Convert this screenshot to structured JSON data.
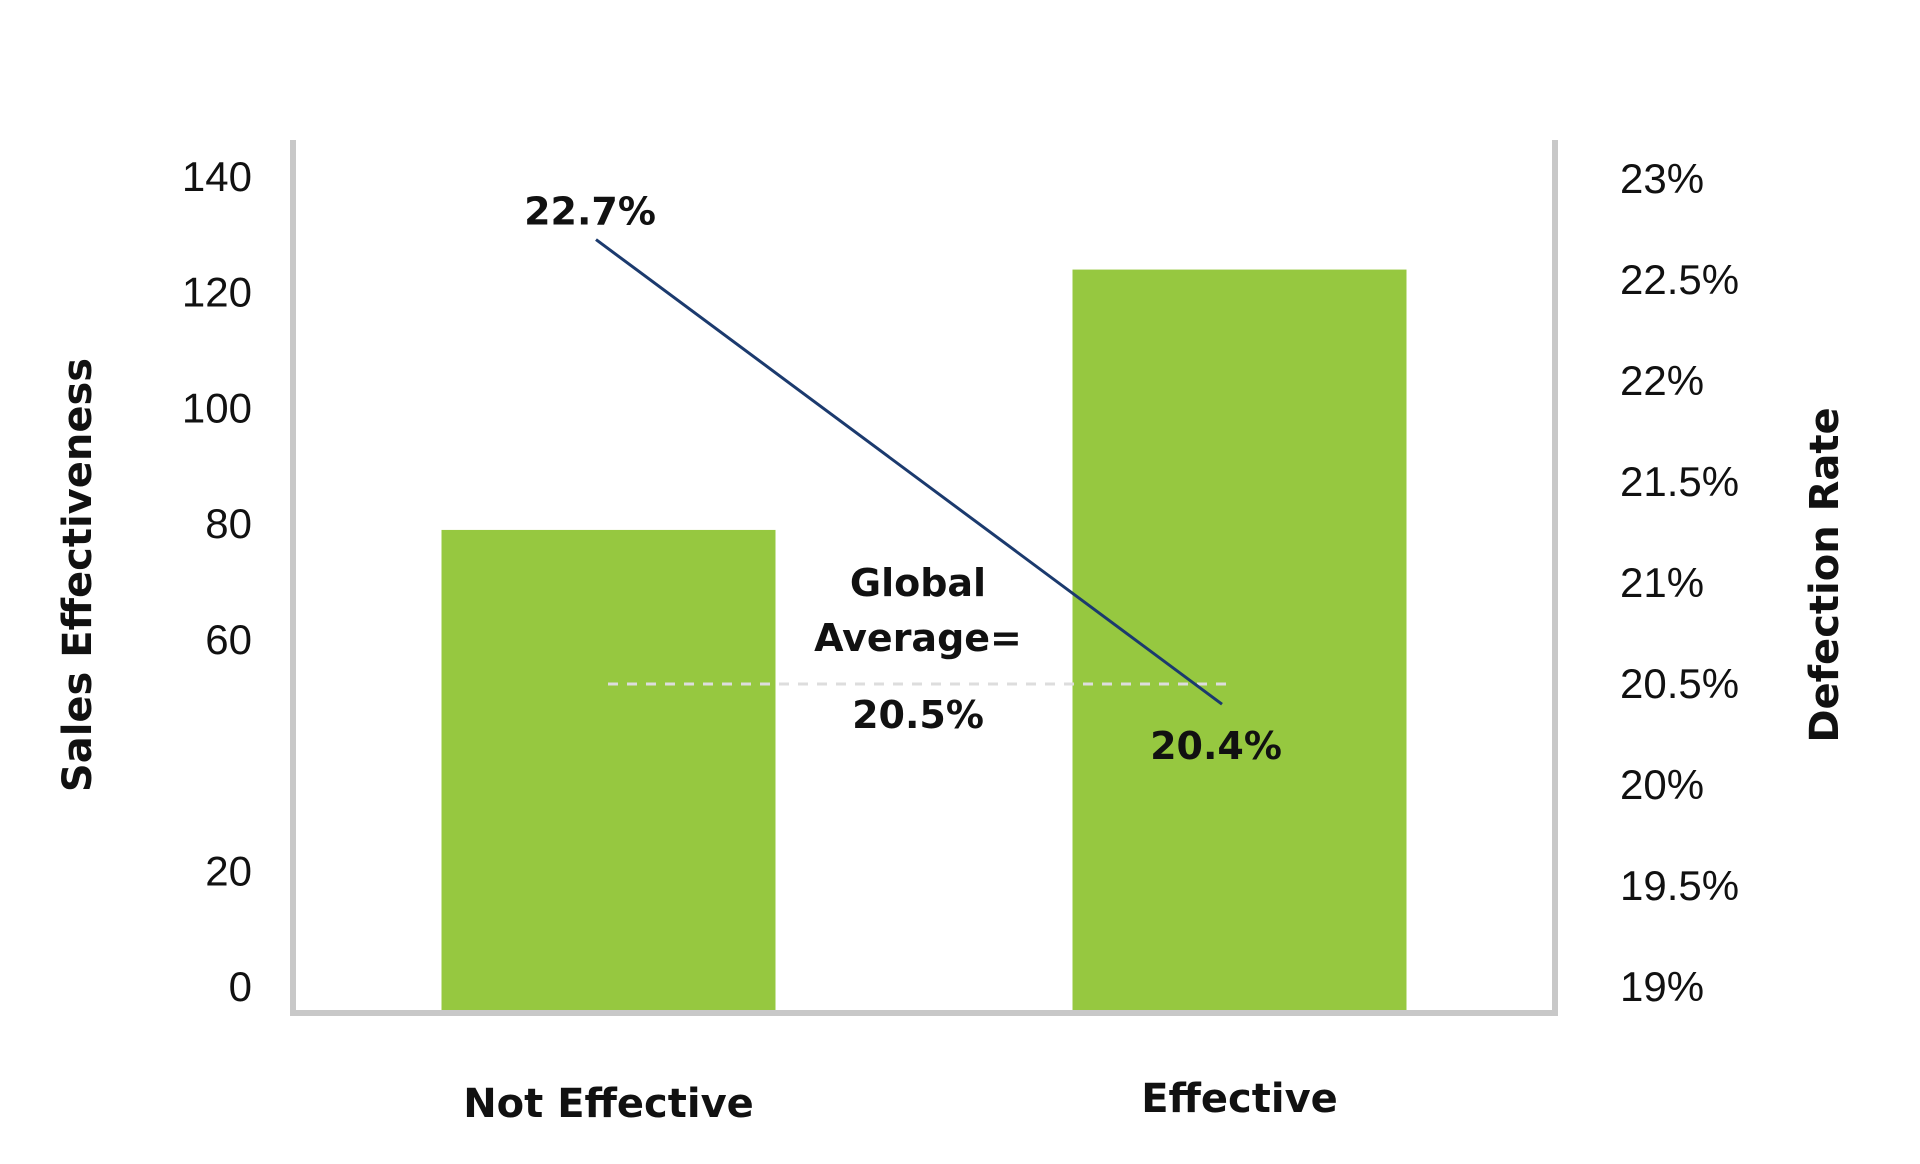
{
  "chart_data": {
    "type": "bar",
    "categories": [
      "Not Effective",
      "Effective"
    ],
    "series": [
      {
        "name": "",
        "type": "bar",
        "axis": "left",
        "values": [
          79,
          124
        ]
      },
      {
        "name": "",
        "type": "line",
        "axis": "right",
        "values": [
          22.7,
          20.4
        ],
        "labels": [
          "22.7%",
          "20.4%"
        ]
      }
    ],
    "y_left": {
      "label": "Sales Effectiveness",
      "ticks": [
        0,
        20,
        60,
        80,
        100,
        120,
        140
      ],
      "tick_labels": [
        "0",
        "20",
        "60",
        "80",
        "100",
        "120",
        "140"
      ],
      "range": [
        0,
        140
      ]
    },
    "y_right": {
      "label": "Defection Rate",
      "ticks": [
        19,
        19.5,
        20,
        20.5,
        21,
        21.5,
        22,
        22.5,
        23
      ],
      "tick_labels": [
        "19%",
        "19.5%",
        "20%",
        "20.5%",
        "21%",
        "21.5%",
        "22%",
        "22.5%",
        "23%"
      ],
      "range": [
        19,
        23
      ]
    },
    "reference_line": {
      "axis": "right",
      "value": 20.5,
      "label_lines": [
        "Global",
        "Average="
      ],
      "value_label": "20.5%",
      "style": "dashed"
    },
    "grid": false,
    "legend": "none",
    "colors": {
      "bar": "#96c840",
      "line": "#1b3a6e",
      "axis": "#c8c8c8",
      "reference": "#dddddd"
    }
  }
}
